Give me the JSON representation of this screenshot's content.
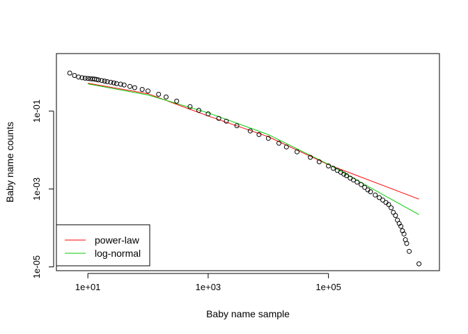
{
  "chart_data": {
    "type": "scatter",
    "title": "",
    "xlabel": "Baby name sample",
    "ylabel": "Baby name counts",
    "x_scale": "log",
    "y_scale": "log",
    "xlim": [
      3,
      7000000
    ],
    "ylim": [
      8e-06,
      3
    ],
    "x_ticks": [
      10,
      1000,
      100000
    ],
    "x_tick_labels": [
      "1e+01",
      "1e+03",
      "1e+05"
    ],
    "y_ticks": [
      1e-05,
      0.001,
      0.1
    ],
    "y_tick_labels": [
      "1e-05",
      "1e-03",
      "1e-01"
    ],
    "grid": false,
    "legend_position": "bottom-left",
    "points": {
      "name": "",
      "marker": "open-circle",
      "color": "#000000",
      "x": [
        5,
        6,
        7,
        8,
        9,
        10,
        11,
        12,
        13,
        14,
        15,
        17,
        19,
        21,
        24,
        27,
        30,
        35,
        40,
        50,
        60,
        80,
        100,
        150,
        200,
        300,
        500,
        700,
        1000,
        1500,
        2000,
        3000,
        5000,
        7000,
        10000,
        15000,
        20000,
        30000,
        50000,
        70000,
        100000,
        120000,
        140000,
        160000,
        180000,
        200000,
        230000,
        260000,
        300000,
        350000,
        400000,
        450000,
        500000,
        600000,
        700000,
        800000,
        900000,
        1000000,
        1100000,
        1200000,
        1300000,
        1400000,
        1500000,
        1600000,
        1700000,
        1800000,
        1900000,
        2000000,
        2200000,
        3200000
      ],
      "y": [
        0.95,
        0.82,
        0.75,
        0.72,
        0.7,
        0.69,
        0.68,
        0.67,
        0.66,
        0.65,
        0.63,
        0.61,
        0.59,
        0.57,
        0.55,
        0.53,
        0.51,
        0.49,
        0.47,
        0.43,
        0.4,
        0.36,
        0.33,
        0.27,
        0.23,
        0.18,
        0.13,
        0.105,
        0.085,
        0.065,
        0.055,
        0.042,
        0.031,
        0.025,
        0.02,
        0.015,
        0.012,
        0.009,
        0.0065,
        0.005,
        0.0039,
        0.0034,
        0.003,
        0.0027,
        0.0024,
        0.0022,
        0.0019,
        0.0017,
        0.0015,
        0.0013,
        0.0011,
        0.00095,
        0.00085,
        0.0007,
        0.0006,
        0.00052,
        0.00045,
        0.0004,
        0.00033,
        0.00025,
        0.00021,
        0.00016,
        0.00013,
        0.00011,
        8.5e-05,
        7e-05,
        5e-05,
        4e-05,
        2.5e-05,
        1.2e-05
      ]
    },
    "series": [
      {
        "name": "power-law",
        "color": "#ff0000",
        "x": [
          10,
          100,
          1000,
          10000,
          100000,
          3200000
        ],
        "y": [
          0.52,
          0.28,
          0.075,
          0.022,
          0.0042,
          0.00055
        ]
      },
      {
        "name": "log-normal",
        "color": "#00cd00",
        "x": [
          10,
          100,
          1000,
          10000,
          100000,
          3200000
        ],
        "y": [
          0.5,
          0.26,
          0.09,
          0.025,
          0.0043,
          0.00022
        ]
      }
    ]
  }
}
